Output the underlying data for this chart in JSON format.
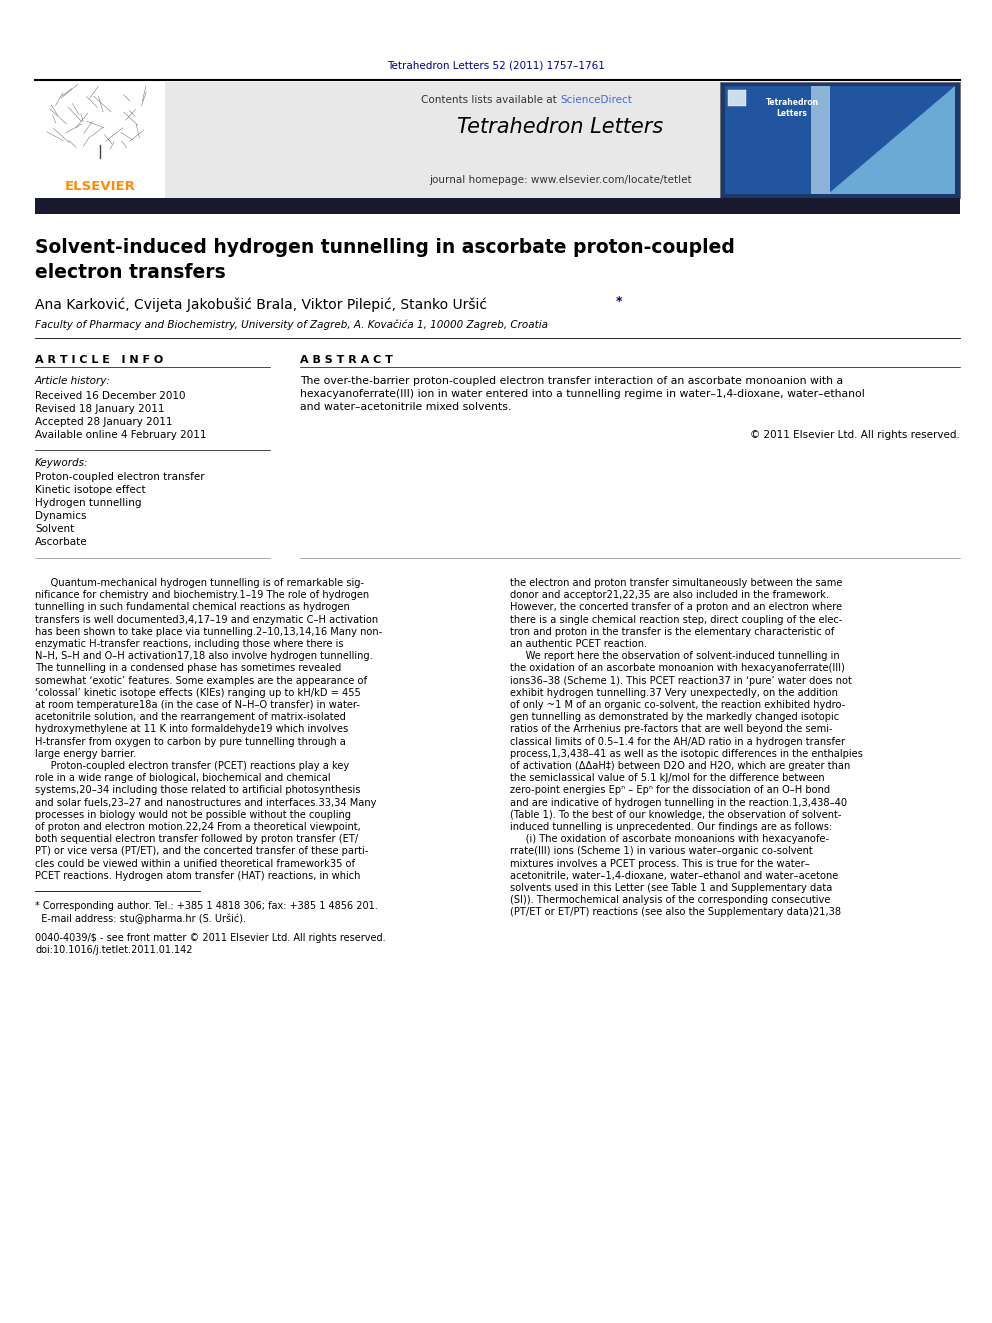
{
  "page_width": 9.92,
  "page_height": 13.23,
  "bg_color": "#ffffff",
  "journal_citation": "Tetrahedron Letters 52 (2011) 1757–1761",
  "journal_citation_color": "#00008B",
  "header_bg": "#e8e8e8",
  "header_title": "Tetrahedron Letters",
  "header_journal_url": "journal homepage: www.elsevier.com/locate/tetlet",
  "header_contents_plain": "Contents lists available at ",
  "header_contents_link": "ScienceDirect",
  "sciencedirect_color": "#4169E1",
  "elsevier_color": "#FF8C00",
  "elsevier_text": "ELSEVIER",
  "article_title_line1": "Solvent-induced hydrogen tunnelling in ascorbate proton-coupled",
  "article_title_line2": "electron transfers",
  "authors_base": "Ana Karković, Cvijeta Jakobušić Brala, Viktor Pilepić, Stanko Uršić",
  "affiliation": "Faculty of Pharmacy and Biochemistry, University of Zagreb, A. Kovačića 1, 10000 Zagreb, Croatia",
  "article_info_header": "A R T I C L E   I N F O",
  "abstract_header": "A B S T R A C T",
  "article_history_label": "Article history:",
  "received": "Received 16 December 2010",
  "revised": "Revised 18 January 2011",
  "accepted": "Accepted 28 January 2011",
  "available": "Available online 4 February 2011",
  "keywords_label": "Keywords:",
  "keywords": [
    "Proton-coupled electron transfer",
    "Kinetic isotope effect",
    "Hydrogen tunnelling",
    "Dynamics",
    "Solvent",
    "Ascorbate"
  ],
  "abstract_lines": [
    "The over-the-barrier proton-coupled electron transfer interaction of an ascorbate monoanion with a",
    "hexacyanoferrate(III) ion in water entered into a tunnelling regime in water–1,4-dioxane, water–ethanol",
    "and water–acetonitrile mixed solvents."
  ],
  "copyright": "© 2011 Elsevier Ltd. All rights reserved.",
  "body_col1_lines": [
    "     Quantum-mechanical hydrogen tunnelling is of remarkable sig-",
    "nificance for chemistry and biochemistry.1–19 The role of hydrogen",
    "tunnelling in such fundamental chemical reactions as hydrogen",
    "transfers is well documented3,4,17–19 and enzymatic C–H activation",
    "has been shown to take place via tunnelling.2–10,13,14,16 Many non-",
    "enzymatic H-transfer reactions, including those where there is",
    "N–H, S–H and O–H activation17,18 also involve hydrogen tunnelling.",
    "The tunnelling in a condensed phase has sometimes revealed",
    "somewhat ‘exotic’ features. Some examples are the appearance of",
    "‘colossal’ kinetic isotope effects (KIEs) ranging up to kH/kD = 455",
    "at room temperature18a (in the case of N–H–O transfer) in water-",
    "acetonitrile solution, and the rearrangement of matrix-isolated",
    "hydroxymethylene at 11 K into formaldehyde19 which involves",
    "H-transfer from oxygen to carbon by pure tunnelling through a",
    "large energy barrier.",
    "     Proton-coupled electron transfer (PCET) reactions play a key",
    "role in a wide range of biological, biochemical and chemical",
    "systems,20–34 including those related to artificial photosynthesis",
    "and solar fuels,23–27 and nanostructures and interfaces.33,34 Many",
    "processes in biology would not be possible without the coupling",
    "of proton and electron motion.22,24 From a theoretical viewpoint,",
    "both sequential electron transfer followed by proton transfer (ET/",
    "PT) or vice versa (PT/ET), and the concerted transfer of these parti-",
    "cles could be viewed within a unified theoretical framework35 of",
    "PCET reactions. Hydrogen atom transfer (HAT) reactions, in which"
  ],
  "body_col2_lines": [
    "the electron and proton transfer simultaneously between the same",
    "donor and acceptor21,22,35 are also included in the framework.",
    "However, the concerted transfer of a proton and an electron where",
    "there is a single chemical reaction step, direct coupling of the elec-",
    "tron and proton in the transfer is the elementary characteristic of",
    "an authentic PCET reaction.",
    "     We report here the observation of solvent-induced tunnelling in",
    "the oxidation of an ascorbate monoanion with hexacyanoferrate(III)",
    "ions36–38 (Scheme 1). This PCET reaction37 in ‘pure’ water does not",
    "exhibit hydrogen tunnelling.37 Very unexpectedly, on the addition",
    "of only ~1 M of an organic co-solvent, the reaction exhibited hydro-",
    "gen tunnelling as demonstrated by the markedly changed isotopic",
    "ratios of the Arrhenius pre-factors that are well beyond the semi-",
    "classical limits of 0.5–1.4 for the AH/AD ratio in a hydrogen transfer",
    "process,1,3,438–41 as well as the isotopic differences in the enthalpies",
    "of activation (ΔΔaH‡) between D2O and H2O, which are greater than",
    "the semiclassical value of 5.1 kJ/mol for the difference between",
    "zero-point energies Epⁿ – Epⁿ for the dissociation of an O–H bond",
    "and are indicative of hydrogen tunnelling in the reaction.1,3,438–40",
    "(Table 1). To the best of our knowledge, the observation of solvent-",
    "induced tunnelling is unprecedented. Our findings are as follows:",
    "     (i) The oxidation of ascorbate monoanions with hexacyanofe-",
    "rrate(III) ions (Scheme 1) in various water–organic co-solvent",
    "mixtures involves a PCET process. This is true for the water–",
    "acetonitrile, water–1,4-dioxane, water–ethanol and water–acetone",
    "solvents used in this Letter (see Table 1 and Supplementary data",
    "(SI)). Thermochemical analysis of the corresponding consecutive",
    "(PT/ET or ET/PT) reactions (see also the Supplementary data)21,38"
  ],
  "footnote_lines": [
    "* Corresponding author. Tel.: +385 1 4818 306; fax: +385 1 4856 201.",
    "  E-mail address: stu@pharma.hr (S. Uršić)."
  ],
  "issn_lines": [
    "0040-4039/$ - see front matter © 2011 Elsevier Ltd. All rights reserved.",
    "doi:10.1016/j.tetlet.2011.01.142"
  ],
  "dark_bar_color": "#1a1a2e",
  "title_color": "#000000",
  "body_text_color": "#000000",
  "header_text_color": "#000000",
  "separator_color": "#000000",
  "thin_line_color": "#888888"
}
